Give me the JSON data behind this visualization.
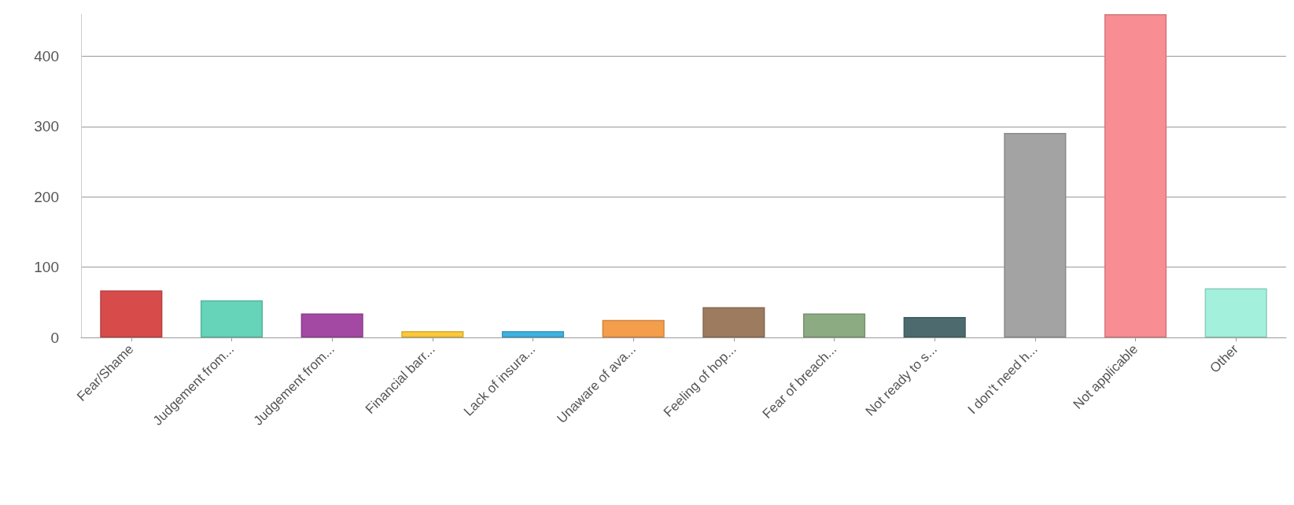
{
  "chart_data": {
    "type": "bar",
    "categories": [
      "Fear/Shame",
      "Judgement from...",
      "Judgement from...",
      "Financial barr...",
      "Lack of insura...",
      "Unaware of ava...",
      "Feeling of hop...",
      "Fear of breach...",
      "Not ready to s...",
      "I don't need h...",
      "Not applicable",
      "Other"
    ],
    "values": [
      67,
      53,
      34,
      9,
      9,
      25,
      43,
      34,
      29,
      291,
      460,
      70
    ],
    "colors": [
      "#d84b4b",
      "#66d4b9",
      "#a349a4",
      "#fcc93a",
      "#3fb2e0",
      "#f49d4b",
      "#9c7b5f",
      "#8cab82",
      "#4d6b6f",
      "#a3a3a3",
      "#f88e93",
      "#a3f0dc"
    ],
    "ylim": [
      0,
      460
    ],
    "yticks": [
      0,
      100,
      200,
      300,
      400
    ],
    "grid": "y"
  }
}
